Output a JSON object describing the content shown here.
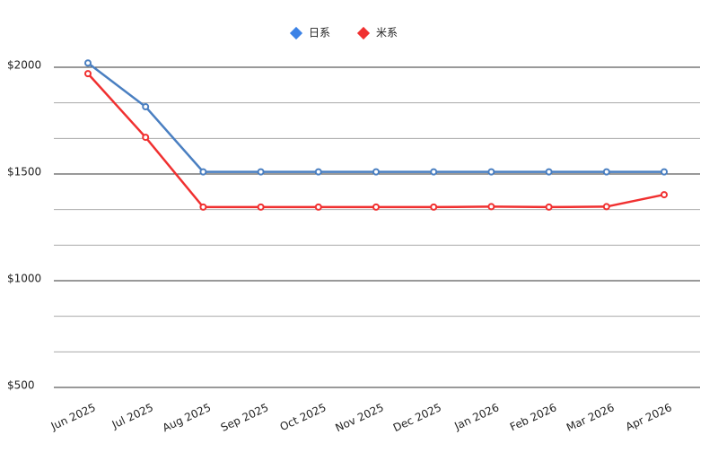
{
  "chart_data": {
    "type": "line",
    "categories": [
      "Jun 2025",
      "Jul 2025",
      "Aug 2025",
      "Sep 2025",
      "Oct 2025",
      "Nov 2025",
      "Dec 2025",
      "Jan 2026",
      "Feb 2026",
      "Mar 2026",
      "Apr 2026"
    ],
    "series": [
      {
        "name": "日系",
        "color": "#4a7fc1",
        "values": [
          2020,
          1815,
          1510,
          1510,
          1510,
          1510,
          1510,
          1510,
          1510,
          1510,
          1510
        ]
      },
      {
        "name": "米系",
        "color": "#f03030",
        "values": [
          1970,
          1672,
          1345,
          1345,
          1345,
          1345,
          1345,
          1347,
          1345,
          1347,
          1403
        ]
      }
    ],
    "ylim": [
      500,
      2060
    ],
    "yticks": [
      {
        "value": 500,
        "label": "$500"
      },
      {
        "value": 1000,
        "label": "$1000"
      },
      {
        "value": 1500,
        "label": "$1500"
      },
      {
        "value": 2000,
        "label": "$2000"
      }
    ],
    "grid": true,
    "legend": "top"
  }
}
